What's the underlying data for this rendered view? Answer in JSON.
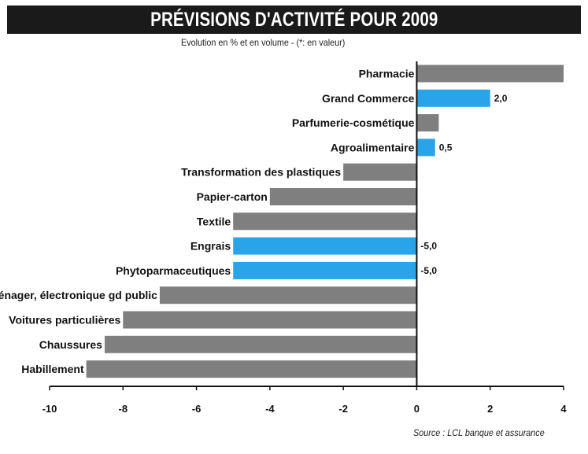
{
  "header": {
    "title": "PRÉVISIONS D'ACTIVITÉ POUR 2009",
    "subtitle": "Evolution en % et en volume - (*: en valeur)"
  },
  "footer": {
    "source": "Source : LCL banque et assurance"
  },
  "colors": {
    "gray_bar": "#7f7f80",
    "blue_bar": "#2aa4e8",
    "title_background": "#1a1a1a",
    "title_text": "#ffffff"
  },
  "chart_data": {
    "type": "bar",
    "orientation": "horizontal",
    "title": "PRÉVISIONS D'ACTIVITÉ POUR 2009",
    "subtitle": "Evolution en % et en volume - (*: en valeur)",
    "xlabel": "",
    "ylabel": "",
    "xlim": [
      -10,
      4
    ],
    "x_ticks": [
      -10,
      -8,
      -6,
      -4,
      -2,
      0,
      2,
      4
    ],
    "x_tick_labels": [
      "-10",
      "-8",
      "-6",
      "-4",
      "-2",
      "0",
      "2",
      "4"
    ],
    "grid": false,
    "categories": [
      "Pharmacie",
      "Grand Commerce",
      "Parfumerie-cosmétique",
      "Agroalimentaire",
      "Transformation des plastiques",
      "Papier-carton",
      "Textile",
      "Engrais",
      "Phytoparmaceutiques",
      "Electroménager, électronique gd public",
      "Voitures particulières",
      "Chaussures",
      "Habillement"
    ],
    "values": [
      4.0,
      2.0,
      0.6,
      0.5,
      -2.0,
      -4.0,
      -5.0,
      -5.0,
      -5.0,
      -7.0,
      -8.0,
      -8.5,
      -9.0
    ],
    "highlight": [
      false,
      true,
      false,
      true,
      false,
      false,
      false,
      true,
      true,
      false,
      false,
      false,
      false
    ],
    "data_labels": [
      "",
      "2,0",
      "",
      "0,5",
      "",
      "",
      "",
      "-5,0",
      "-5,0",
      "",
      "",
      "",
      ""
    ]
  }
}
